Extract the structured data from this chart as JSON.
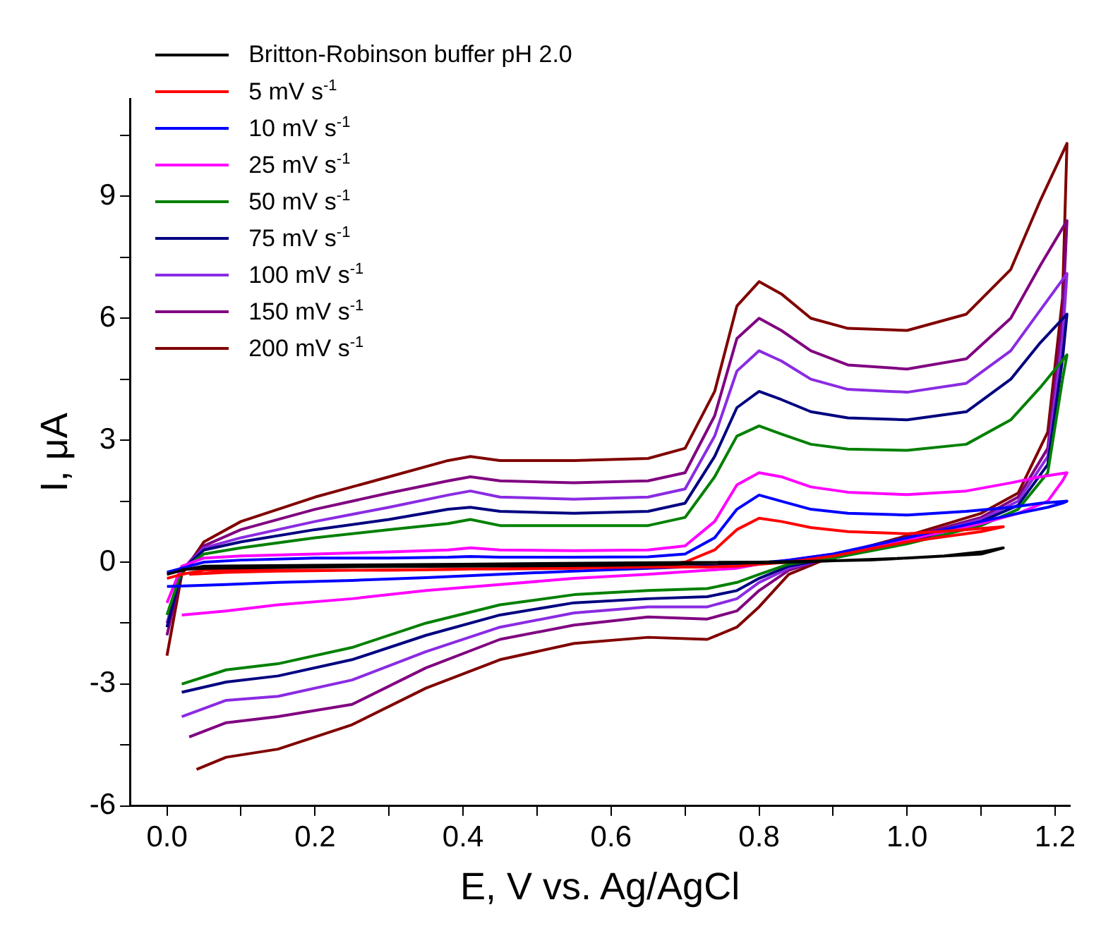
{
  "chart_data": {
    "type": "line",
    "xlabel": "E, V vs. Ag/AgCl",
    "ylabel": "I, μA",
    "xlim": [
      -0.05,
      1.22
    ],
    "ylim": [
      -6,
      11.4
    ],
    "xticks": [
      {
        "value": 0,
        "label": "0.0"
      },
      {
        "value": 0.1,
        "label": null
      },
      {
        "value": 0.2,
        "label": "0.2"
      },
      {
        "value": 0.3,
        "label": null
      },
      {
        "value": 0.4,
        "label": "0.4"
      },
      {
        "value": 0.5,
        "label": null
      },
      {
        "value": 0.6,
        "label": "0.6"
      },
      {
        "value": 0.7,
        "label": null
      },
      {
        "value": 0.8,
        "label": "0.8"
      },
      {
        "value": 0.9,
        "label": null
      },
      {
        "value": 1.0,
        "label": "1.0"
      },
      {
        "value": 1.1,
        "label": null
      },
      {
        "value": 1.2,
        "label": "1.2"
      }
    ],
    "yticks": [
      -6,
      {
        "value": -4.5,
        "label": null
      },
      -3,
      {
        "value": -1.5,
        "label": null
      },
      0,
      {
        "value": 1.5,
        "label": null
      },
      3,
      {
        "value": 4.5,
        "label": null
      },
      6,
      {
        "value": 7.5,
        "label": null
      },
      9,
      {
        "value": 10.5,
        "label": null
      }
    ],
    "legend": "top left",
    "marker": "none",
    "series": [
      {
        "name": "Britton-Robinson buffer pH 2.0",
        "color": "#000000",
        "x": [
          0,
          0.02,
          0.05,
          0.2,
          0.4,
          0.6,
          0.8,
          0.95,
          1.05,
          1.1,
          1.13,
          1.1,
          1.0,
          0.85,
          0.6,
          0.4,
          0.2,
          0.05,
          0.02
        ],
        "values": [
          -0.3,
          -0.2,
          -0.1,
          -0.08,
          -0.05,
          -0.02,
          0.0,
          0.05,
          0.15,
          0.25,
          0.35,
          0.2,
          0.1,
          0.0,
          -0.08,
          -0.1,
          -0.12,
          -0.15,
          -0.18
        ]
      },
      {
        "name": "5 mV s$^{-1}$",
        "color": "#ff0000",
        "x": [
          0,
          0.02,
          0.05,
          0.1,
          0.2,
          0.3,
          0.38,
          0.41,
          0.45,
          0.55,
          0.65,
          0.7,
          0.74,
          0.77,
          0.8,
          0.83,
          0.87,
          0.92,
          1.0,
          1.08,
          1.13,
          1.1,
          1.0,
          0.9,
          0.84,
          0.8,
          0.77,
          0.73,
          0.65,
          0.55,
          0.45,
          0.35,
          0.25,
          0.15,
          0.08,
          0.03
        ],
        "values": [
          -0.4,
          -0.3,
          -0.2,
          -0.2,
          -0.2,
          -0.2,
          -0.18,
          -0.17,
          -0.17,
          -0.15,
          -0.1,
          0.0,
          0.3,
          0.8,
          1.08,
          1.0,
          0.85,
          0.75,
          0.7,
          0.8,
          0.87,
          0.75,
          0.5,
          0.15,
          0.0,
          -0.05,
          -0.1,
          -0.12,
          -0.12,
          -0.14,
          -0.16,
          -0.18,
          -0.2,
          -0.22,
          -0.25,
          -0.3
        ]
      },
      {
        "name": "10 mV s$^{-1}$",
        "color": "#0000ff",
        "x": [
          0,
          0.02,
          0.05,
          0.1,
          0.2,
          0.3,
          0.38,
          0.41,
          0.45,
          0.55,
          0.65,
          0.7,
          0.74,
          0.77,
          0.8,
          0.83,
          0.87,
          0.92,
          1.0,
          1.08,
          1.14,
          1.18,
          1.216,
          1.21,
          1.19,
          1.15,
          1.1,
          1.0,
          0.9,
          0.84,
          0.8,
          0.77,
          0.73,
          0.65,
          0.55,
          0.45,
          0.35,
          0.25,
          0.15,
          0.08,
          0.0
        ],
        "values": [
          -0.25,
          -0.15,
          0.0,
          0.05,
          0.1,
          0.1,
          0.12,
          0.14,
          0.12,
          0.12,
          0.13,
          0.2,
          0.6,
          1.3,
          1.65,
          1.5,
          1.3,
          1.2,
          1.16,
          1.25,
          1.35,
          1.45,
          1.5,
          1.45,
          1.35,
          1.2,
          1.0,
          0.6,
          0.2,
          0.05,
          -0.02,
          -0.08,
          -0.1,
          -0.15,
          -0.22,
          -0.3,
          -0.38,
          -0.45,
          -0.5,
          -0.55,
          -0.6
        ]
      },
      {
        "name": "25 mV s$^{-1}$",
        "color": "#ff00ff",
        "x": [
          0,
          0.02,
          0.05,
          0.1,
          0.2,
          0.3,
          0.38,
          0.41,
          0.45,
          0.55,
          0.65,
          0.7,
          0.74,
          0.77,
          0.8,
          0.83,
          0.87,
          0.92,
          1.0,
          1.08,
          1.14,
          1.18,
          1.216,
          1.21,
          1.19,
          1.15,
          1.1,
          1.0,
          0.9,
          0.84,
          0.8,
          0.77,
          0.73,
          0.65,
          0.55,
          0.45,
          0.35,
          0.25,
          0.15,
          0.08,
          0.02
        ],
        "values": [
          -1.0,
          -0.1,
          0.1,
          0.15,
          0.2,
          0.25,
          0.3,
          0.35,
          0.3,
          0.28,
          0.3,
          0.4,
          1.0,
          1.9,
          2.2,
          2.1,
          1.85,
          1.72,
          1.66,
          1.75,
          1.95,
          2.1,
          2.2,
          2.0,
          1.5,
          1.2,
          0.95,
          0.55,
          0.2,
          0.05,
          -0.05,
          -0.15,
          -0.2,
          -0.3,
          -0.4,
          -0.55,
          -0.7,
          -0.9,
          -1.05,
          -1.2,
          -1.3
        ]
      },
      {
        "name": "50 mV s$^{-1}$",
        "color": "#008000",
        "x": [
          0,
          0.02,
          0.05,
          0.1,
          0.2,
          0.3,
          0.38,
          0.41,
          0.45,
          0.55,
          0.65,
          0.7,
          0.74,
          0.77,
          0.8,
          0.83,
          0.87,
          0.92,
          1.0,
          1.08,
          1.14,
          1.18,
          1.216,
          1.21,
          1.19,
          1.15,
          1.1,
          1.0,
          0.9,
          0.84,
          0.8,
          0.77,
          0.73,
          0.65,
          0.55,
          0.45,
          0.35,
          0.25,
          0.15,
          0.08,
          0.02
        ],
        "values": [
          -1.3,
          -0.2,
          0.2,
          0.35,
          0.6,
          0.8,
          0.95,
          1.05,
          0.9,
          0.9,
          0.9,
          1.1,
          2.1,
          3.1,
          3.35,
          3.15,
          2.9,
          2.78,
          2.75,
          2.9,
          3.5,
          4.3,
          5.1,
          4.5,
          2.2,
          1.3,
          0.9,
          0.45,
          0.1,
          -0.05,
          -0.3,
          -0.5,
          -0.65,
          -0.7,
          -0.8,
          -1.05,
          -1.5,
          -2.1,
          -2.5,
          -2.65,
          -3.0
        ]
      },
      {
        "name": "75 mV s$^{-1}$",
        "color": "#000080",
        "x": [
          0,
          0.02,
          0.05,
          0.1,
          0.2,
          0.3,
          0.38,
          0.41,
          0.45,
          0.55,
          0.65,
          0.7,
          0.74,
          0.77,
          0.8,
          0.83,
          0.87,
          0.92,
          1.0,
          1.08,
          1.14,
          1.18,
          1.216,
          1.21,
          1.19,
          1.15,
          1.1,
          1.0,
          0.9,
          0.84,
          0.8,
          0.77,
          0.73,
          0.65,
          0.55,
          0.45,
          0.35,
          0.25,
          0.15,
          0.08,
          0.02
        ],
        "values": [
          -1.6,
          -0.2,
          0.3,
          0.5,
          0.8,
          1.05,
          1.3,
          1.35,
          1.25,
          1.2,
          1.25,
          1.45,
          2.6,
          3.8,
          4.2,
          4.0,
          3.7,
          3.55,
          3.5,
          3.7,
          4.5,
          5.4,
          6.1,
          5.0,
          2.4,
          1.4,
          1.0,
          0.5,
          0.1,
          -0.1,
          -0.4,
          -0.7,
          -0.85,
          -0.9,
          -1.0,
          -1.3,
          -1.8,
          -2.4,
          -2.8,
          -2.95,
          -3.2
        ]
      },
      {
        "name": "100 mV s$^{-1}$",
        "color": "#8a2be2",
        "x": [
          0,
          0.02,
          0.05,
          0.1,
          0.2,
          0.3,
          0.38,
          0.41,
          0.45,
          0.55,
          0.65,
          0.7,
          0.74,
          0.77,
          0.8,
          0.83,
          0.87,
          0.92,
          1.0,
          1.08,
          1.14,
          1.18,
          1.216,
          1.21,
          1.19,
          1.15,
          1.1,
          1.0,
          0.9,
          0.84,
          0.8,
          0.77,
          0.73,
          0.65,
          0.55,
          0.45,
          0.35,
          0.25,
          0.15,
          0.08,
          0.02
        ],
        "values": [
          -1.5,
          -0.2,
          0.35,
          0.6,
          1.0,
          1.35,
          1.65,
          1.75,
          1.6,
          1.55,
          1.6,
          1.8,
          3.1,
          4.7,
          5.2,
          4.95,
          4.5,
          4.25,
          4.18,
          4.4,
          5.2,
          6.2,
          7.1,
          5.5,
          2.6,
          1.5,
          1.05,
          0.55,
          0.12,
          -0.15,
          -0.5,
          -0.9,
          -1.1,
          -1.1,
          -1.25,
          -1.6,
          -2.2,
          -2.9,
          -3.3,
          -3.4,
          -3.8
        ]
      },
      {
        "name": "150 mV s$^{-1}$",
        "color": "#800080",
        "x": [
          0,
          0.02,
          0.05,
          0.1,
          0.2,
          0.3,
          0.38,
          0.41,
          0.45,
          0.55,
          0.65,
          0.7,
          0.74,
          0.77,
          0.8,
          0.83,
          0.87,
          0.92,
          1.0,
          1.08,
          1.14,
          1.18,
          1.216,
          1.21,
          1.19,
          1.15,
          1.1,
          1.0,
          0.9,
          0.84,
          0.8,
          0.77,
          0.73,
          0.65,
          0.55,
          0.45,
          0.35,
          0.25,
          0.15,
          0.08,
          0.03
        ],
        "values": [
          -1.8,
          -0.2,
          0.4,
          0.8,
          1.3,
          1.7,
          2.0,
          2.1,
          2.0,
          1.95,
          2.0,
          2.2,
          3.6,
          5.5,
          6.0,
          5.7,
          5.2,
          4.85,
          4.75,
          5.0,
          6.0,
          7.3,
          8.4,
          6.0,
          2.8,
          1.6,
          1.1,
          0.6,
          0.15,
          -0.2,
          -0.7,
          -1.2,
          -1.4,
          -1.35,
          -1.55,
          -1.9,
          -2.6,
          -3.5,
          -3.8,
          -3.95,
          -4.3
        ]
      },
      {
        "name": "200 mV s$^{-1}$",
        "color": "#800000",
        "x": [
          0,
          0.02,
          0.05,
          0.1,
          0.2,
          0.3,
          0.38,
          0.41,
          0.45,
          0.55,
          0.65,
          0.7,
          0.74,
          0.77,
          0.8,
          0.83,
          0.87,
          0.92,
          1.0,
          1.08,
          1.14,
          1.18,
          1.216,
          1.21,
          1.19,
          1.15,
          1.1,
          1.0,
          0.9,
          0.84,
          0.8,
          0.77,
          0.73,
          0.65,
          0.55,
          0.45,
          0.35,
          0.25,
          0.15,
          0.08,
          0.04
        ],
        "values": [
          -2.3,
          -0.3,
          0.5,
          1.0,
          1.6,
          2.1,
          2.5,
          2.6,
          2.5,
          2.5,
          2.55,
          2.8,
          4.2,
          6.3,
          6.9,
          6.6,
          6.0,
          5.75,
          5.7,
          6.1,
          7.2,
          8.9,
          10.3,
          6.5,
          3.2,
          1.7,
          1.2,
          0.65,
          0.15,
          -0.3,
          -1.1,
          -1.6,
          -1.9,
          -1.85,
          -2.0,
          -2.4,
          -3.1,
          -4.0,
          -4.6,
          -4.8,
          -5.1
        ]
      }
    ]
  }
}
